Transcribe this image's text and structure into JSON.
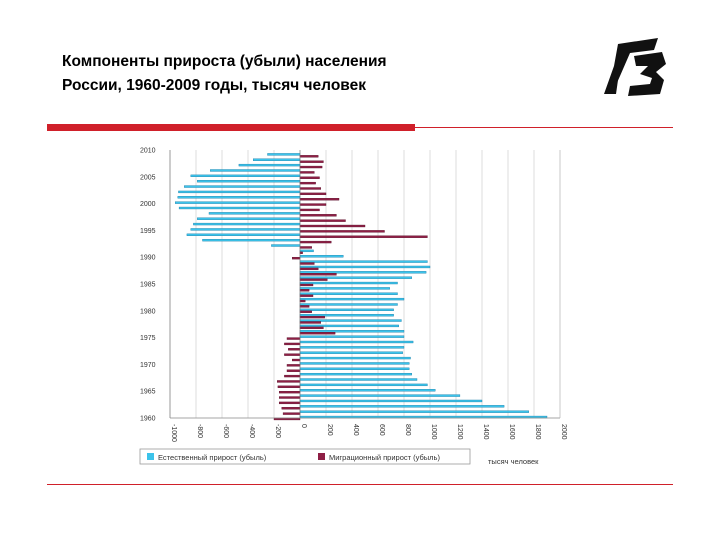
{
  "slide": {
    "title_line1": "Компоненты прироста (убыли) населения",
    "title_line2": "России, 1960-2009 годы, тысяч человек"
  },
  "colors": {
    "accent_red": "#d0202a",
    "natural": "#3cc3ea",
    "migration": "#8e1f45"
  },
  "logo": {
    "icon": "stylized-emblem-logo"
  },
  "chart_data": {
    "type": "bar",
    "orientation": "horizontal",
    "years": [
      1960,
      1961,
      1962,
      1963,
      1964,
      1965,
      1966,
      1967,
      1968,
      1969,
      1970,
      1971,
      1972,
      1973,
      1974,
      1975,
      1976,
      1977,
      1978,
      1979,
      1980,
      1981,
      1982,
      1983,
      1984,
      1985,
      1986,
      1987,
      1988,
      1989,
      1990,
      1991,
      1992,
      1993,
      1994,
      1995,
      1996,
      1997,
      1998,
      1999,
      2000,
      2001,
      2002,
      2003,
      2004,
      2005,
      2006,
      2007,
      2008,
      2009
    ],
    "y_tick_labels": [
      "1960",
      "1965",
      "1970",
      "1975",
      "1980",
      "1985",
      "1990",
      "1995",
      "2000",
      "2005",
      "2010"
    ],
    "x_tick_labels": [
      "-1000",
      "-800",
      "-600",
      "-400",
      "-200",
      "0",
      "200",
      "400",
      "600",
      "800",
      "1000",
      "1200",
      "1400",
      "1600",
      "1800",
      "2000"
    ],
    "xlim": [
      -1000,
      2000
    ],
    "series": [
      {
        "name": "Естественный прирост (убыль)",
        "values": [
          1900,
          1760,
          1570,
          1400,
          1230,
          1040,
          980,
          900,
          860,
          840,
          840,
          850,
          790,
          800,
          870,
          800,
          800,
          760,
          780,
          720,
          720,
          750,
          800,
          750,
          690,
          750,
          860,
          970,
          1000,
          980,
          333,
          104,
          -220,
          -750,
          -870,
          -840,
          -820,
          -790,
          -700,
          -930,
          -960,
          -940,
          -935,
          -890,
          -790,
          -840,
          -690,
          -470,
          -360,
          -250
        ]
      },
      {
        "name": "Миграционный прирост (убыль)",
        "values": [
          -200,
          -130,
          -140,
          -160,
          -160,
          -160,
          -170,
          -175,
          -120,
          -100,
          -100,
          -60,
          -120,
          -90,
          -120,
          -100,
          270,
          180,
          160,
          190,
          90,
          70,
          40,
          100,
          70,
          100,
          210,
          280,
          140,
          110,
          -60,
          20,
          90,
          240,
          980,
          650,
          500,
          350,
          280,
          150,
          200,
          300,
          200,
          160,
          120,
          150,
          110,
          170,
          180,
          140
        ]
      }
    ],
    "legend": [
      "Естественный прирост (убыль)",
      "Миграционный прирост (убыль)"
    ],
    "unit_label": "тысяч человек",
    "grid": true,
    "legend_position": "bottom"
  }
}
